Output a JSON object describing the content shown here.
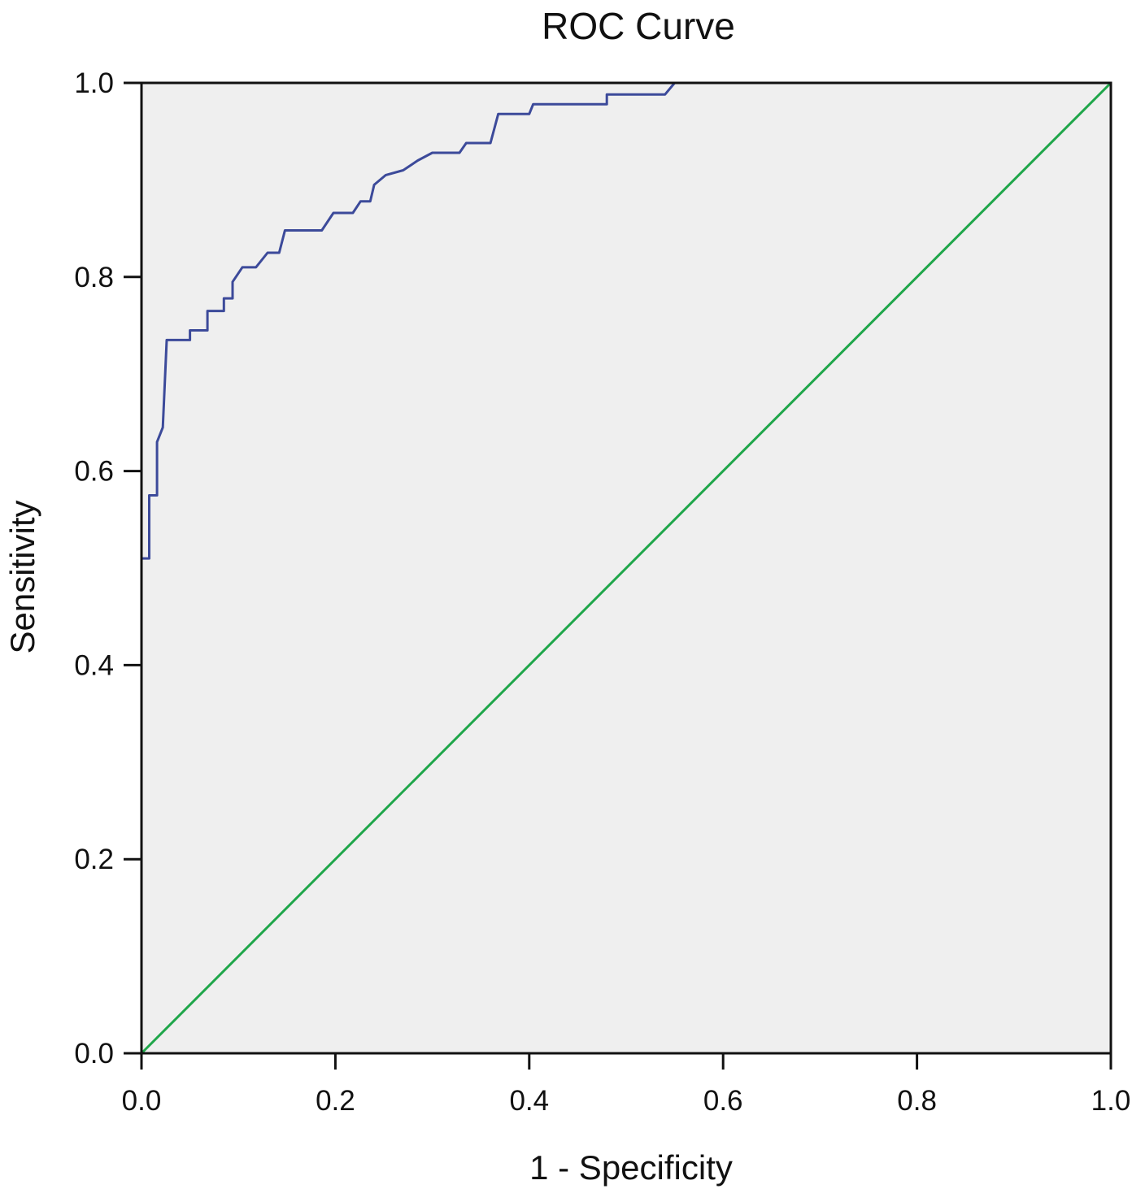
{
  "chart_data": {
    "type": "line",
    "title": "ROC Curve",
    "xlabel": "1 - Specificity",
    "ylabel": "Sensitivity",
    "xlim": [
      0.0,
      1.0
    ],
    "ylim": [
      0.0,
      1.0
    ],
    "x_ticks": [
      "0.0",
      "0.2",
      "0.4",
      "0.6",
      "0.8",
      "1.0"
    ],
    "y_ticks": [
      "0.0",
      "0.2",
      "0.4",
      "0.6",
      "0.8",
      "1.0"
    ],
    "grid": false,
    "plot_background": "#efefef",
    "series": [
      {
        "color": "#3c4a9a",
        "style": "step",
        "points": [
          [
            0.0,
            0.0
          ],
          [
            0.0,
            0.51
          ],
          [
            0.008,
            0.51
          ],
          [
            0.008,
            0.575
          ],
          [
            0.016,
            0.575
          ],
          [
            0.016,
            0.63
          ],
          [
            0.022,
            0.645
          ],
          [
            0.026,
            0.735
          ],
          [
            0.05,
            0.735
          ],
          [
            0.05,
            0.745
          ],
          [
            0.062,
            0.745
          ],
          [
            0.068,
            0.745
          ],
          [
            0.068,
            0.765
          ],
          [
            0.085,
            0.765
          ],
          [
            0.085,
            0.778
          ],
          [
            0.094,
            0.778
          ],
          [
            0.094,
            0.795
          ],
          [
            0.104,
            0.81
          ],
          [
            0.118,
            0.81
          ],
          [
            0.13,
            0.825
          ],
          [
            0.142,
            0.825
          ],
          [
            0.148,
            0.848
          ],
          [
            0.168,
            0.848
          ],
          [
            0.186,
            0.848
          ],
          [
            0.198,
            0.866
          ],
          [
            0.218,
            0.866
          ],
          [
            0.226,
            0.878
          ],
          [
            0.236,
            0.878
          ],
          [
            0.24,
            0.895
          ],
          [
            0.252,
            0.905
          ],
          [
            0.27,
            0.91
          ],
          [
            0.285,
            0.92
          ],
          [
            0.3,
            0.928
          ],
          [
            0.328,
            0.928
          ],
          [
            0.335,
            0.938
          ],
          [
            0.36,
            0.938
          ],
          [
            0.368,
            0.968
          ],
          [
            0.4,
            0.968
          ],
          [
            0.404,
            0.978
          ],
          [
            0.48,
            0.978
          ],
          [
            0.48,
            0.988
          ],
          [
            0.54,
            0.988
          ],
          [
            0.55,
            1.0
          ],
          [
            1.0,
            1.0
          ]
        ]
      },
      {
        "color": "#1fa64a",
        "style": "line",
        "points": [
          [
            0.0,
            0.0
          ],
          [
            1.0,
            1.0
          ]
        ]
      }
    ]
  }
}
